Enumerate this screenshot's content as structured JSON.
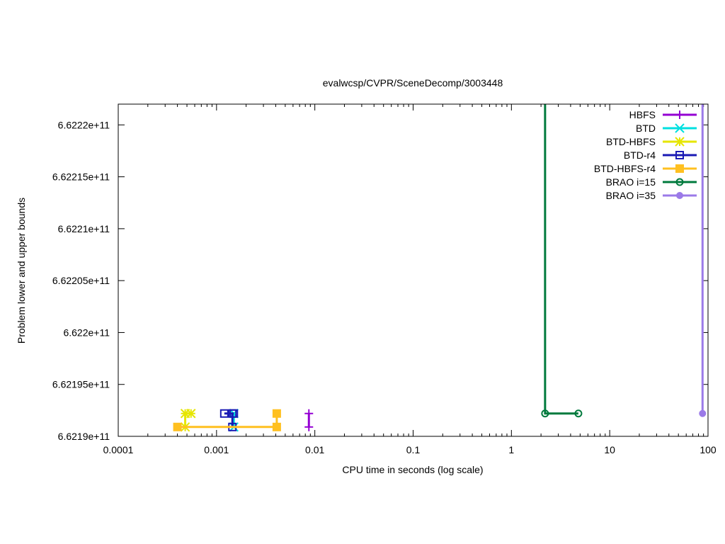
{
  "chart_data": {
    "type": "line",
    "title": "evalwcsp/CVPR/SceneDecomp/3003448",
    "xlabel": "CPU time in seconds (log scale)",
    "ylabel": "Problem lower and upper bounds",
    "x_scale": "log",
    "xlim": [
      0.0001,
      100
    ],
    "ylim": [
      661900000000,
      662220000000
    ],
    "x_ticks": [
      {
        "value": 0.0001,
        "label": "0.0001"
      },
      {
        "value": 0.001,
        "label": "0.001"
      },
      {
        "value": 0.01,
        "label": "0.01"
      },
      {
        "value": 0.1,
        "label": "0.1"
      },
      {
        "value": 1,
        "label": "1"
      },
      {
        "value": 10,
        "label": "10"
      },
      {
        "value": 100,
        "label": "100"
      }
    ],
    "y_ticks": [
      {
        "value": 661900000000,
        "label": "6.6219e+11"
      },
      {
        "value": 661950000000,
        "label": "6.62195e+11"
      },
      {
        "value": 662000000000,
        "label": "6.622e+11"
      },
      {
        "value": 662050000000,
        "label": "6.62205e+11"
      },
      {
        "value": 662100000000,
        "label": "6.6221e+11"
      },
      {
        "value": 662150000000,
        "label": "6.62215e+11"
      },
      {
        "value": 662200000000,
        "label": "6.6222e+11"
      }
    ],
    "grid": false,
    "legend_position": "top-right",
    "series": [
      {
        "name": "HBFS",
        "color": "#9400d3",
        "marker": "plus",
        "points": [
          [
            0.0087,
            661909000000
          ],
          [
            0.0087,
            661922000000
          ]
        ]
      },
      {
        "name": "BTD",
        "color": "#00e0e0",
        "marker": "cross",
        "points": [
          [
            0.0015,
            661909000000
          ],
          [
            0.0015,
            661922000000
          ]
        ]
      },
      {
        "name": "BTD-HBFS",
        "color": "#e6e600",
        "marker": "star",
        "points": [
          [
            0.00048,
            661909000000
          ],
          [
            0.00048,
            661922000000
          ],
          [
            0.00055,
            661922000000
          ]
        ]
      },
      {
        "name": "BTD-r4",
        "color": "#1a1ab4",
        "marker": "open-square",
        "points": [
          [
            0.00145,
            661909000000
          ],
          [
            0.00145,
            661922000000
          ],
          [
            0.0012,
            661922000000
          ],
          [
            0.0015,
            661922000000
          ]
        ]
      },
      {
        "name": "BTD-HBFS-r4",
        "color": "#ffc020",
        "marker": "filled-square",
        "points": [
          [
            0.0004,
            661909000000
          ],
          [
            0.0041,
            661909000000
          ],
          [
            0.0041,
            661922000000
          ]
        ]
      },
      {
        "name": "BRAO i=15",
        "color": "#007a3d",
        "marker": "open-circle",
        "points": [
          [
            2.2,
            662220000000
          ],
          [
            2.2,
            661922000000
          ],
          [
            4.8,
            661922000000
          ]
        ]
      },
      {
        "name": "BRAO i=35",
        "color": "#9b7ae8",
        "marker": "filled-circle",
        "points": [
          [
            88,
            662220000000
          ],
          [
            88,
            661922000000
          ]
        ]
      }
    ]
  }
}
